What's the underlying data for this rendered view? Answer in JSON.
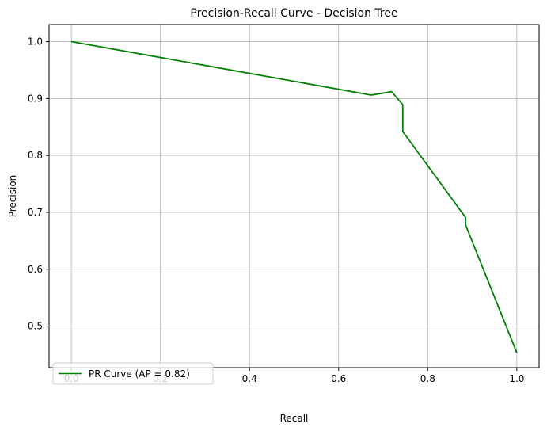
{
  "chart_data": {
    "type": "line",
    "title": "Precision-Recall Curve - Decision Tree",
    "xlabel": "Recall",
    "ylabel": "Precision",
    "xlim": [
      -0.05,
      1.05
    ],
    "ylim": [
      0.427,
      1.03
    ],
    "xticks": [
      0.0,
      0.2,
      0.4,
      0.6,
      0.8,
      1.0
    ],
    "xtick_labels": [
      "0.0",
      "0.2",
      "0.4",
      "0.6",
      "0.8",
      "1.0"
    ],
    "yticks": [
      0.5,
      0.6,
      0.7,
      0.8,
      0.9,
      1.0
    ],
    "ytick_labels": [
      "0.5",
      "0.6",
      "0.7",
      "0.8",
      "0.9",
      "1.0"
    ],
    "grid": true,
    "legend_position": "lower-left",
    "series": [
      {
        "name": "PR Curve (AP = 0.82)",
        "color": "#008000",
        "x": [
          0.0,
          0.673,
          0.719,
          0.744,
          0.744,
          0.885,
          0.885,
          1.0
        ],
        "y": [
          1.0,
          0.906,
          0.912,
          0.889,
          0.842,
          0.691,
          0.678,
          0.453
        ]
      }
    ]
  }
}
